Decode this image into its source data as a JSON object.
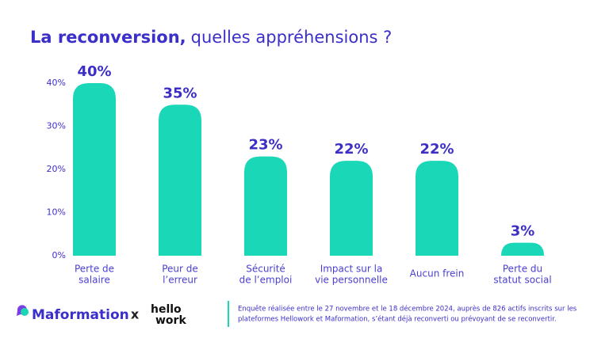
{
  "chart_data": {
    "type": "bar",
    "title": [
      "La reconversion,",
      "quelles appréhensions ?"
    ],
    "categories": [
      [
        "Perte de",
        "salaire"
      ],
      [
        "Peur de",
        "l’erreur"
      ],
      [
        "Sécurité",
        "de l’emploi"
      ],
      [
        "Impact sur la",
        "vie personnelle"
      ],
      [
        "Aucun frein"
      ],
      [
        "Perte du",
        "statut social"
      ]
    ],
    "values": [
      40,
      35,
      23,
      22,
      22,
      3
    ],
    "value_labels": [
      "40%",
      "35%",
      "23%",
      "22%",
      "22%",
      "3%"
    ],
    "color": "#1ad8b7",
    "ylim": [
      0,
      40
    ],
    "yticks": [
      {
        "value": 0,
        "label": "0%"
      },
      {
        "value": 10,
        "label": "10%"
      },
      {
        "value": 20,
        "label": "20%"
      },
      {
        "value": 30,
        "label": "30%"
      },
      {
        "value": 40,
        "label": "40%"
      }
    ],
    "grid": false
  },
  "footer": {
    "logo_left": "Maformation",
    "separator": "x",
    "logo_right": [
      "hello",
      "work"
    ],
    "note": [
      "Enquête réalisée entre le 27 novembre et le 18 décembre 2024, auprès de 826 actifs inscrits sur les",
      "plateformes Hellowork et Maformation, s’étant déjà reconverti ou prévoyant de se reconvertir."
    ]
  }
}
